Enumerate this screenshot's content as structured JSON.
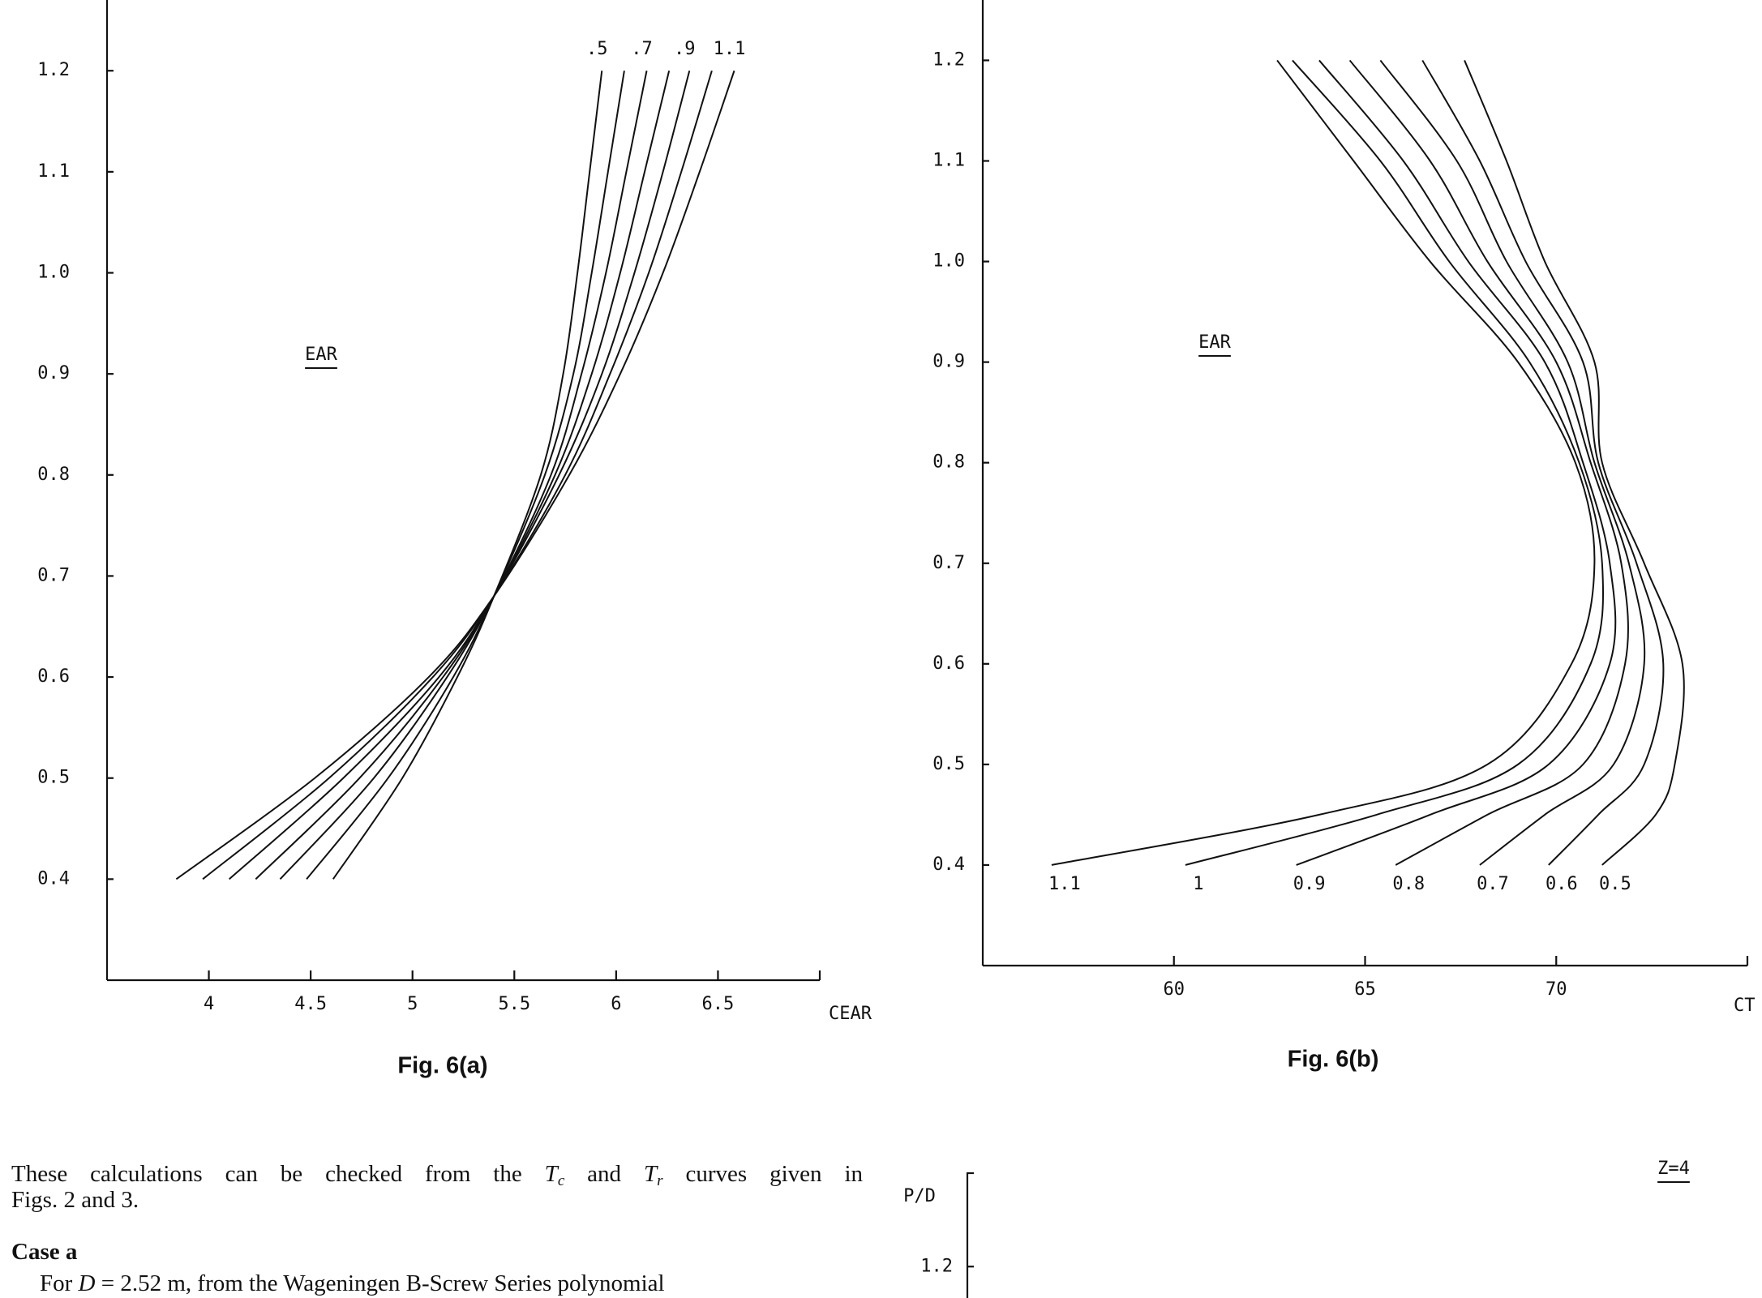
{
  "chart_data": [
    {
      "type": "line",
      "caption": "Fig. 6(a)",
      "xlabel": "CEAR",
      "annotation": "EAR",
      "xlim": [
        3.5,
        7.0
      ],
      "ylim": [
        0.3,
        1.27
      ],
      "xticks": [
        4,
        4.5,
        5,
        5.5,
        6,
        6.5
      ],
      "yticks": [
        0.4,
        0.5,
        0.6,
        0.7,
        0.8,
        0.9,
        {
          "value": 1,
          "label": "1.0"
        },
        1.1,
        1.2
      ],
      "color": "#111111",
      "grid": false,
      "series": [
        {
          "name": ".5",
          "x": [
            4.61,
            4.95,
            5.22,
            5.4,
            5.63,
            5.74,
            5.81,
            5.87,
            5.93
          ],
          "values": [
            0.4,
            0.5,
            0.6,
            0.68,
            0.8,
            0.9,
            1.0,
            1.1,
            1.2
          ]
        },
        {
          "name": null,
          "x": [
            4.48,
            4.88,
            5.2,
            5.4,
            5.65,
            5.79,
            5.88,
            5.96,
            6.04
          ],
          "values": [
            0.4,
            0.5,
            0.6,
            0.68,
            0.8,
            0.9,
            1.0,
            1.1,
            1.2
          ]
        },
        {
          "name": ".7",
          "x": [
            4.35,
            4.81,
            5.17,
            5.4,
            5.68,
            5.83,
            5.95,
            6.05,
            6.15
          ],
          "values": [
            0.4,
            0.5,
            0.6,
            0.68,
            0.8,
            0.9,
            1.0,
            1.1,
            1.2
          ]
        },
        {
          "name": null,
          "x": [
            4.23,
            4.74,
            5.15,
            5.4,
            5.7,
            5.88,
            6.02,
            6.14,
            6.26
          ],
          "values": [
            0.4,
            0.5,
            0.6,
            0.68,
            0.8,
            0.9,
            1.0,
            1.1,
            1.2
          ]
        },
        {
          "name": ".9",
          "x": [
            4.1,
            4.66,
            5.13,
            5.4,
            5.72,
            5.93,
            6.09,
            6.23,
            6.36
          ],
          "values": [
            0.4,
            0.5,
            0.6,
            0.68,
            0.8,
            0.9,
            1.0,
            1.1,
            1.2
          ]
        },
        {
          "name": null,
          "x": [
            3.97,
            4.59,
            5.1,
            5.4,
            5.75,
            5.97,
            6.16,
            6.32,
            6.47
          ],
          "values": [
            0.4,
            0.5,
            0.6,
            0.68,
            0.8,
            0.9,
            1.0,
            1.1,
            1.2
          ]
        },
        {
          "name": "1.1",
          "x": [
            3.84,
            4.52,
            5.08,
            5.4,
            5.77,
            6.02,
            6.23,
            6.41,
            6.58
          ],
          "values": [
            0.4,
            0.5,
            0.6,
            0.68,
            0.8,
            0.9,
            1.0,
            1.1,
            1.2
          ]
        }
      ]
    },
    {
      "type": "line",
      "caption": "Fig. 6(b)",
      "xlabel": "CT",
      "annotation": "EAR",
      "xlim": [
        55,
        75
      ],
      "ylim": [
        0.3,
        1.26
      ],
      "xticks": [
        60,
        65,
        70
      ],
      "yticks": [
        0.4,
        0.5,
        0.6,
        0.7,
        0.8,
        0.9,
        {
          "value": 1,
          "label": "1.0"
        },
        1.1,
        1.2
      ],
      "color": "#111111",
      "grid": false,
      "series": [
        {
          "name": "1.1",
          "x": [
            56.8,
            63.8,
            68.2,
            70.4,
            71.0,
            70.5,
            69.0,
            66.7,
            64.7,
            62.7
          ],
          "values": [
            0.4,
            0.45,
            0.5,
            0.6,
            0.7,
            0.8,
            0.9,
            1.0,
            1.1,
            1.2
          ]
        },
        {
          "name": "1",
          "x": [
            60.3,
            65.3,
            69.0,
            70.9,
            71.2,
            70.6,
            69.3,
            67.2,
            65.4,
            63.1
          ],
          "values": [
            0.4,
            0.45,
            0.5,
            0.6,
            0.7,
            0.8,
            0.9,
            1.0,
            1.1,
            1.2
          ]
        },
        {
          "name": "0.9",
          "x": [
            63.2,
            66.7,
            69.8,
            71.4,
            71.4,
            70.7,
            69.7,
            67.7,
            66.0,
            63.8
          ],
          "values": [
            0.4,
            0.45,
            0.5,
            0.6,
            0.7,
            0.8,
            0.9,
            1.0,
            1.1,
            1.2
          ]
        },
        {
          "name": "0.8",
          "x": [
            65.8,
            68.2,
            70.7,
            71.8,
            71.7,
            70.9,
            70.0,
            68.2,
            66.7,
            64.6
          ],
          "values": [
            0.4,
            0.45,
            0.5,
            0.6,
            0.7,
            0.8,
            0.9,
            1.0,
            1.1,
            1.2
          ]
        },
        {
          "name": "0.7",
          "x": [
            68.0,
            69.7,
            71.5,
            72.3,
            71.9,
            71.0,
            70.3,
            68.7,
            67.4,
            65.4
          ],
          "values": [
            0.4,
            0.45,
            0.5,
            0.6,
            0.7,
            0.8,
            0.9,
            1.0,
            1.1,
            1.2
          ]
        },
        {
          "name": "0.6",
          "x": [
            69.8,
            71.1,
            72.3,
            72.8,
            72.1,
            71.1,
            70.7,
            69.2,
            68.0,
            66.5
          ],
          "values": [
            0.4,
            0.45,
            0.5,
            0.6,
            0.7,
            0.8,
            0.9,
            1.0,
            1.1,
            1.2
          ]
        },
        {
          "name": "0.5",
          "x": [
            71.2,
            72.6,
            73.1,
            73.3,
            72.3,
            71.2,
            71.0,
            69.7,
            68.7,
            67.6
          ],
          "values": [
            0.4,
            0.45,
            0.5,
            0.6,
            0.7,
            0.8,
            0.9,
            1.0,
            1.1,
            1.2
          ]
        }
      ]
    },
    {
      "type": "line",
      "ylabel": "P/D",
      "annotation": "Z=4",
      "ylim": [
        1.17,
        1.29
      ],
      "yticks": [
        1.2
      ],
      "grid": false
    }
  ],
  "text": {
    "paragraph_line1": [
      "These calculations can be checked from the ",
      "T",
      "c",
      " and ",
      "T",
      "r",
      " curves given in"
    ],
    "paragraph_line2": "Figs. 2 and 3.",
    "case_heading": "Case a",
    "case_line": [
      "For ",
      "D",
      " = 2.52 m, from the Wageningen B-Screw Series polynomial"
    ]
  }
}
